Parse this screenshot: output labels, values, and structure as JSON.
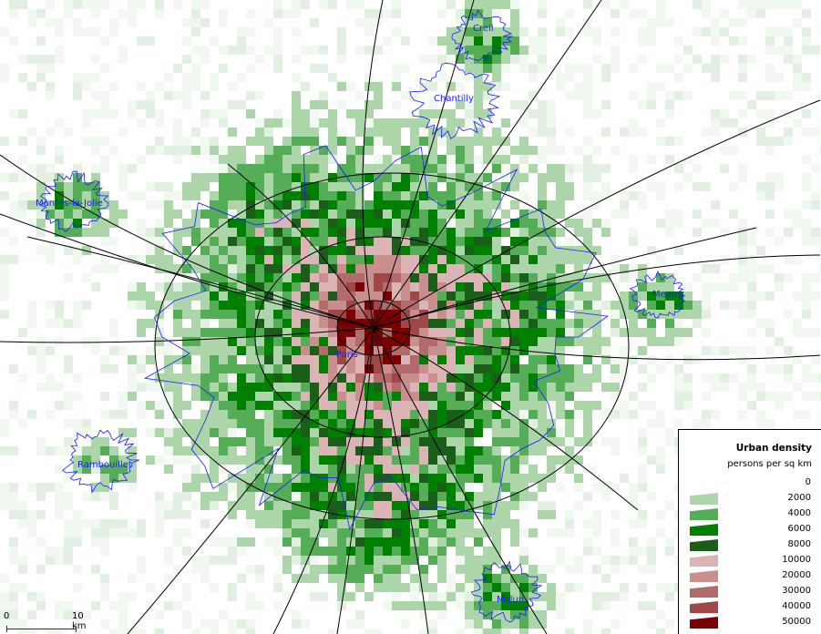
{
  "map": {
    "places": [
      {
        "name": "Creil"
      },
      {
        "name": "Chantilly"
      },
      {
        "name": "Mantes-la-Jolie"
      },
      {
        "name": "Meaux"
      },
      {
        "name": "Paris"
      },
      {
        "name": "Rambouillet"
      },
      {
        "name": "Melun"
      }
    ],
    "colors": {
      "roads": "#000000",
      "boundaries": "#1a1aff"
    }
  },
  "legend": {
    "title": "Urban density",
    "subtitle": "persons per sq km",
    "classes": [
      {
        "value": "0",
        "color": ""
      },
      {
        "value": "2000",
        "color": "#acd6a9"
      },
      {
        "value": "4000",
        "color": "#55ad58"
      },
      {
        "value": "6000",
        "color": "#008000"
      },
      {
        "value": "8000",
        "color": "#1a5e1a"
      },
      {
        "value": "10000",
        "color": "#dbb5b5"
      },
      {
        "value": "20000",
        "color": "#c98f8f"
      },
      {
        "value": "30000",
        "color": "#b36a6a"
      },
      {
        "value": "40000",
        "color": "#a04848"
      },
      {
        "value": "50000",
        "color": "#7a0000"
      }
    ]
  },
  "scale_bar": {
    "start": "0",
    "end": "10 km"
  }
}
